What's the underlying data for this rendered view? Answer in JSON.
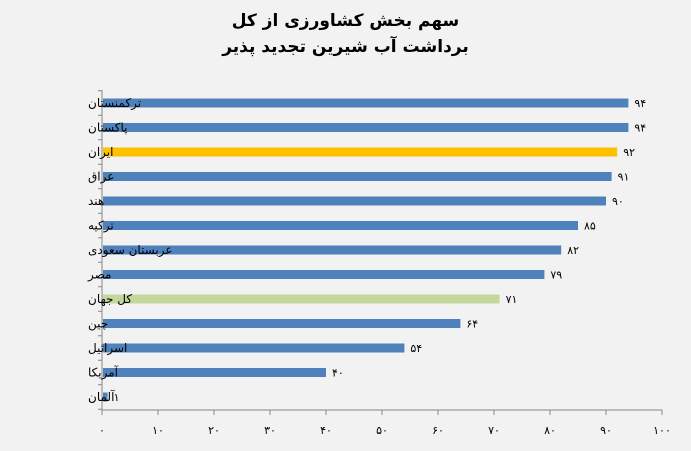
{
  "chart_data": {
    "type": "bar",
    "orientation": "horizontal",
    "title": [
      "سهم بخش کشاورزی از کل",
      "برداشت آب شیرین تجدید پذیر"
    ],
    "categories": [
      "ترکمنستان",
      "پاکستان",
      "ایران",
      "عراق",
      "هند",
      "ترکیه",
      "عربستان سعودی",
      "مصر",
      "کل جهان",
      "چین",
      "اسرائیل",
      "آمریکا",
      "آلمان"
    ],
    "values": [
      94,
      94,
      92,
      91,
      90,
      85,
      82,
      79,
      71,
      64,
      54,
      40,
      1
    ],
    "value_labels": [
      "۹۴",
      "۹۴",
      "۹۲",
      "۹۱",
      "۹۰",
      "۸۵",
      "۸۲",
      "۷۹",
      "۷۱",
      "۶۴",
      "۵۴",
      "۴۰",
      "۱"
    ],
    "bar_colors": [
      "#4f81bd",
      "#4f81bd",
      "#ffc000",
      "#4f81bd",
      "#4f81bd",
      "#4f81bd",
      "#4f81bd",
      "#4f81bd",
      "#c3d69b",
      "#4f81bd",
      "#4f81bd",
      "#4f81bd",
      "#4f81bd"
    ],
    "xlim": [
      0,
      100
    ],
    "xticks": [
      0,
      10,
      20,
      30,
      40,
      50,
      60,
      70,
      80,
      90,
      100
    ],
    "xtick_labels": [
      "۰",
      "۱۰",
      "۲۰",
      "۳۰",
      "۴۰",
      "۵۰",
      "۶۰",
      "۷۰",
      "۸۰",
      "۹۰",
      "۱۰۰"
    ],
    "grid": false,
    "legend": false
  }
}
